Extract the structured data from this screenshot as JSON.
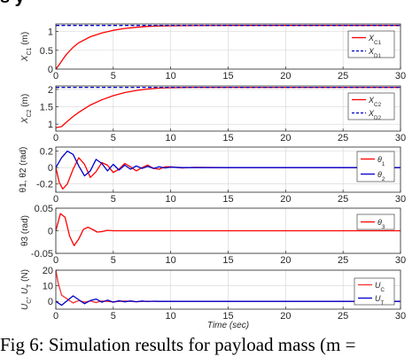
{
  "caption": "Fig 6:  Simulation results for payload mass (m = ",
  "top_crop_text": "s                          y",
  "xlabel": "Time (sec)",
  "chart_data": [
    {
      "type": "line",
      "ylabel": "X_C1 (m)",
      "xlim": [
        0,
        30
      ],
      "ylim": [
        0,
        1.2
      ],
      "yticks": [
        0,
        0.5,
        1
      ],
      "xticks": [
        0,
        5,
        10,
        15,
        20,
        25,
        30
      ],
      "grid": true,
      "legend": "top-right",
      "series": [
        {
          "name": "X_C1",
          "color": "#ff0000",
          "style": "solid",
          "x": [
            0,
            0.3,
            0.7,
            1,
            1.5,
            2,
            3,
            4,
            5,
            6,
            7,
            8,
            9,
            10,
            12,
            15,
            20,
            25,
            30
          ],
          "y": [
            0,
            0.12,
            0.3,
            0.42,
            0.58,
            0.7,
            0.86,
            0.96,
            1.03,
            1.08,
            1.11,
            1.135,
            1.145,
            1.15,
            1.155,
            1.16,
            1.16,
            1.16,
            1.16
          ]
        },
        {
          "name": "X_D1",
          "color": "#0000cc",
          "style": "dashed",
          "x": [
            0,
            30
          ],
          "y": [
            1.16,
            1.16
          ]
        }
      ]
    },
    {
      "type": "line",
      "ylabel": "X_C2 (m)",
      "xlim": [
        0,
        30
      ],
      "ylim": [
        0.8,
        2.1
      ],
      "yticks": [
        1,
        1.5,
        2
      ],
      "xticks": [
        0,
        5,
        10,
        15,
        20,
        25,
        30
      ],
      "grid": true,
      "legend": "top-right",
      "series": [
        {
          "name": "X_C2",
          "color": "#ff0000",
          "style": "solid",
          "x": [
            0,
            0.5,
            1,
            1.5,
            2,
            3,
            4,
            5,
            6,
            7,
            8,
            9,
            10,
            12,
            15,
            20,
            25,
            30
          ],
          "y": [
            0.9,
            0.93,
            1.08,
            1.22,
            1.34,
            1.55,
            1.7,
            1.82,
            1.91,
            1.97,
            2.01,
            2.04,
            2.05,
            2.06,
            2.06,
            2.06,
            2.06,
            2.06
          ]
        },
        {
          "name": "X_D2",
          "color": "#0000cc",
          "style": "dashed",
          "x": [
            0,
            30
          ],
          "y": [
            2.06,
            2.06
          ]
        }
      ]
    },
    {
      "type": "line",
      "ylabel": "θ1, θ2 (rad)",
      "xlim": [
        0,
        30
      ],
      "ylim": [
        -0.3,
        0.25
      ],
      "yticks": [
        -0.2,
        0,
        0.2
      ],
      "xticks": [
        0,
        5,
        10,
        15,
        20,
        25,
        30
      ],
      "grid": true,
      "legend": "top-right",
      "series": [
        {
          "name": "θ1",
          "color": "#ff0000",
          "style": "solid",
          "x": [
            0,
            0.3,
            0.6,
            1,
            1.5,
            2,
            2.5,
            3,
            3.5,
            4,
            4.5,
            5,
            5.5,
            6,
            6.5,
            7,
            7.5,
            8,
            8.5,
            9,
            9.5,
            10,
            11,
            12,
            15,
            20,
            25,
            30
          ],
          "y": [
            0,
            -0.18,
            -0.26,
            -0.2,
            -0.02,
            0.12,
            0.04,
            -0.12,
            -0.05,
            0.06,
            0.03,
            -0.06,
            -0.02,
            0.05,
            0.01,
            -0.04,
            0.0,
            0.03,
            -0.01,
            -0.02,
            0.01,
            0.01,
            -0.005,
            0.003,
            0,
            0,
            0,
            0
          ]
        },
        {
          "name": "θ2",
          "color": "#0000cc",
          "style": "solid",
          "x": [
            0,
            0.5,
            1,
            1.5,
            2,
            2.5,
            3,
            3.5,
            4,
            4.5,
            5,
            5.5,
            6,
            6.5,
            7,
            7.5,
            8,
            8.5,
            9,
            9.5,
            10,
            11,
            12,
            15,
            20,
            25,
            30
          ],
          "y": [
            0,
            0.12,
            0.2,
            0.16,
            0.02,
            -0.1,
            -0.04,
            0.1,
            0.05,
            -0.04,
            0.04,
            -0.03,
            0.03,
            -0.02,
            0.02,
            -0.01,
            0.015,
            -0.01,
            0.01,
            -0.005,
            0.005,
            0,
            0,
            0,
            0,
            0,
            0
          ]
        }
      ]
    },
    {
      "type": "line",
      "ylabel": "θ3 (rad)",
      "xlim": [
        0,
        30
      ],
      "ylim": [
        -0.05,
        0.05
      ],
      "yticks": [
        -0.05,
        0,
        0.05
      ],
      "xticks": [
        0,
        5,
        10,
        15,
        20,
        25,
        30
      ],
      "grid": true,
      "legend": "top-right",
      "series": [
        {
          "name": "θ3",
          "color": "#ff0000",
          "style": "solid",
          "x": [
            0,
            0.4,
            0.8,
            1.2,
            1.6,
            2,
            2.4,
            2.8,
            3.2,
            3.6,
            4,
            4.5,
            5,
            6,
            7,
            8,
            10,
            15,
            20,
            25,
            30
          ],
          "y": [
            0,
            0.038,
            0.03,
            -0.012,
            -0.033,
            -0.018,
            0.003,
            0.008,
            0.003,
            -0.003,
            -0.002,
            0.001,
            0.0,
            0.0,
            0.0,
            0,
            0,
            0,
            0,
            0,
            0
          ]
        }
      ]
    },
    {
      "type": "line",
      "ylabel": "U_C, U_T (N)",
      "xlim": [
        0,
        30
      ],
      "ylim": [
        -5,
        20
      ],
      "yticks": [
        0,
        10,
        20
      ],
      "xticks": [
        0,
        5,
        10,
        15,
        20,
        25,
        30
      ],
      "grid": true,
      "legend": "top-right",
      "series": [
        {
          "name": "U_C",
          "color": "#ff3030",
          "style": "solid",
          "x": [
            0,
            0.2,
            0.5,
            1,
            1.5,
            2,
            2.5,
            3,
            3.5,
            4,
            5,
            6,
            7,
            8,
            9,
            10,
            12,
            15,
            20,
            25,
            30
          ],
          "y": [
            20,
            12,
            4,
            1.5,
            -1,
            0.5,
            -0.5,
            0.3,
            -0.8,
            0.2,
            -0.3,
            0.2,
            -0.2,
            0.1,
            -0.1,
            0.05,
            0,
            0,
            0,
            0,
            0
          ]
        },
        {
          "name": "U_T",
          "color": "#0000cc",
          "style": "solid",
          "x": [
            0,
            0.5,
            1,
            1.5,
            2,
            2.5,
            3,
            3.5,
            4,
            4.5,
            5,
            5.5,
            6,
            6.5,
            7,
            7.5,
            8,
            8.5,
            9,
            10,
            12,
            15,
            20,
            25,
            30
          ],
          "y": [
            0,
            -2.5,
            0.5,
            3.5,
            1.0,
            -1.5,
            0.5,
            1.5,
            -0.5,
            0.8,
            -0.5,
            0.4,
            -0.3,
            0.3,
            -0.2,
            0.2,
            -0.1,
            0.1,
            0,
            0,
            0,
            0,
            0,
            0,
            0
          ]
        }
      ]
    }
  ]
}
